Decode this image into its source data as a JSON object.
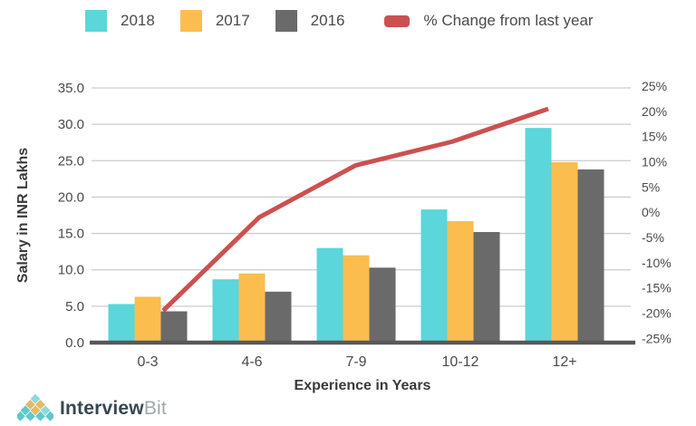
{
  "chart_data": {
    "type": "bar+line",
    "title": "",
    "categories": [
      "0-3",
      "4-6",
      "7-9",
      "10-12",
      "12+"
    ],
    "series": [
      {
        "name": "2018",
        "type": "bar",
        "color": "#5bd6da",
        "values": [
          5.3,
          8.7,
          13.0,
          18.3,
          29.5
        ]
      },
      {
        "name": "2017",
        "type": "bar",
        "color": "#fbbd4d",
        "values": [
          6.3,
          9.5,
          12.0,
          16.7,
          24.8
        ]
      },
      {
        "name": "2016",
        "type": "bar",
        "color": "#6a6a6a",
        "values": [
          4.3,
          7.0,
          10.3,
          15.2,
          23.8
        ]
      },
      {
        "name": "% Change from last year",
        "type": "line",
        "axis": "right",
        "color": "#cd5050",
        "values": [
          -19.5,
          -1.0,
          9.3,
          14.0,
          20.5
        ]
      }
    ],
    "xlabel": "Experience in Years",
    "ylabel": "Salary in INR Lakhs",
    "y_left": {
      "min": 0,
      "max": 35,
      "step": 5
    },
    "y_right": {
      "min": -25,
      "max": 25,
      "step": 5
    },
    "left_ticks": [
      "35.0",
      "30.0",
      "25.0",
      "20.0",
      "15.0",
      "10.0",
      "5.0",
      "0.0"
    ],
    "right_ticks": [
      "25%",
      "20%",
      "15%",
      "10%",
      "5%",
      "0%",
      "-5%",
      "-10%",
      "-15%",
      "-20%",
      "-25%"
    ],
    "grid": true,
    "legend_position": "top"
  },
  "footer": {
    "brand": {
      "name_primary": "Interview",
      "name_secondary": "Bit"
    }
  },
  "colors": {
    "grid": "#cdcdcd",
    "axis": "#58585a",
    "tick_text": "#4a4a4a",
    "axis_title_text": "#3a3a3a",
    "logo_teal_light": "#8fd9dc",
    "logo_teal": "#5fc8cd",
    "logo_orange": "#e5b968"
  }
}
